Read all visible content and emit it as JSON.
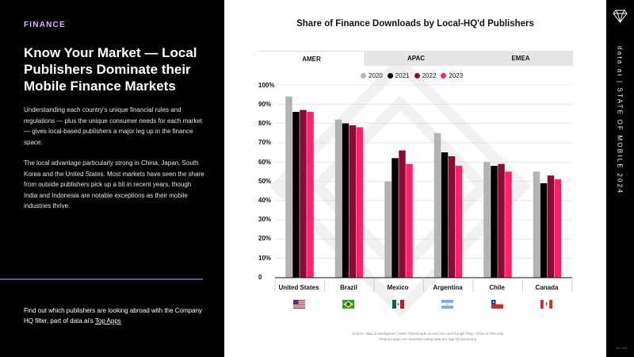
{
  "left": {
    "section": "FINANCE",
    "title": "Know Your Market — Local Publishers Dominate their Mobile Finance Markets",
    "para1": "Understanding each country's unique financial rules and regulations — plus the unique consumer needs for each market — gives local-based publishers a major leg up in the finance space.",
    "para2": "The local advantage particularly strong in China, Japan, South Korea and the United States. Most markets have seen the share from outside publishers pick up a bit in recent years, though India and Indonesia are notable exceptions as their mobile industries thrive.",
    "footer_text": "Find out which publishers are looking abroad with the Company HQ filter, part of data.ai's ",
    "footer_link": "Top Apps"
  },
  "sidebar": {
    "brand": "data.ai | STATE OF MOBILE 2024",
    "page": "46 / 120"
  },
  "tabs": [
    "AMER",
    "APAC",
    "EMEA"
  ],
  "active_tab": "AMER",
  "source_line1": "Source: data.ai Intelligence | Note: Downloads across iOS and Google Play; China is iOS only.",
  "source_line2": "Finance apps are classified using data.ai's App IQ taxonomy.",
  "flags": {
    "us": "united-states-flag-icon",
    "br": "brazil-flag-icon",
    "mx": "mexico-flag-icon",
    "ar": "argentina-flag-icon",
    "cl": "chile-flag-icon",
    "ca": "canada-flag-icon"
  },
  "chart_data": {
    "type": "bar",
    "title": "Share of Finance Downloads by Local-HQ'd Publishers",
    "categories": [
      "United States",
      "Brazil",
      "Mexico",
      "Argentina",
      "Chile",
      "Canada"
    ],
    "series": [
      {
        "name": "2020",
        "color": "#b3b3b3",
        "values": [
          94,
          82,
          50,
          75,
          60,
          55
        ]
      },
      {
        "name": "2021",
        "color": "#000000",
        "values": [
          86,
          80,
          62,
          65,
          58,
          49
        ]
      },
      {
        "name": "2022",
        "color": "#8b0a3a",
        "values": [
          87,
          79,
          66,
          63,
          59,
          53
        ]
      },
      {
        "name": "2023",
        "color": "#ff1f6b",
        "values": [
          86,
          78,
          59,
          58,
          55,
          51
        ]
      }
    ],
    "y_ticks": [
      "0",
      "10%",
      "20%",
      "30%",
      "40%",
      "50%",
      "60%",
      "70%",
      "80%",
      "90%",
      "100%"
    ],
    "ylim": [
      0,
      100
    ],
    "grid": true,
    "legend_position": "top"
  }
}
